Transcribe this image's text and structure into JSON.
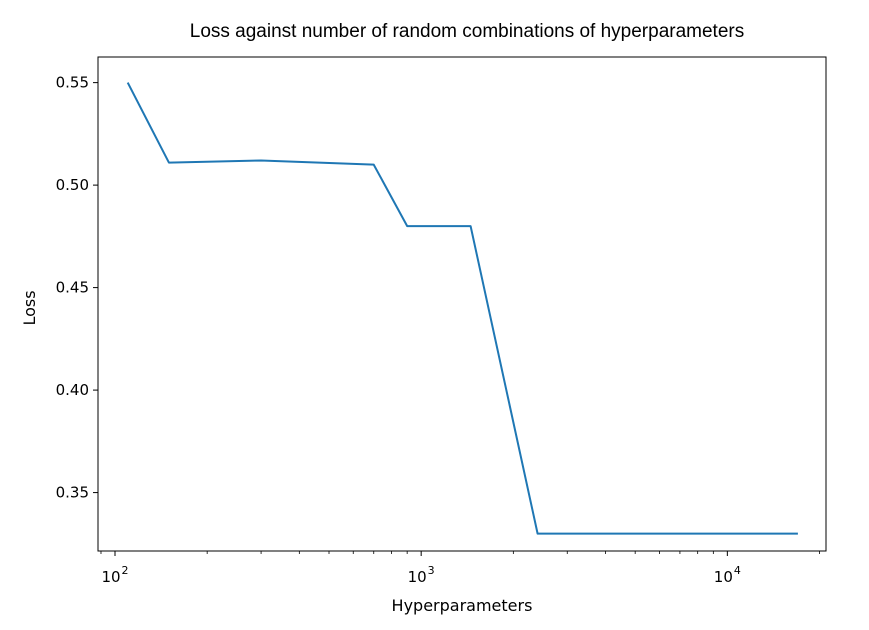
{
  "chart_data": {
    "type": "line",
    "title": "Loss against number of random combinations of hyperparameters",
    "xlabel": "Hyperparameters",
    "ylabel": "Loss",
    "x_scale": "log",
    "xlim": [
      88,
      21000
    ],
    "ylim": [
      0.3215,
      0.5625
    ],
    "grid": false,
    "x_tick_labels": [
      {
        "value": 100,
        "base": "10",
        "exp": "2"
      },
      {
        "value": 1000,
        "base": "10",
        "exp": "3"
      },
      {
        "value": 10000,
        "base": "10",
        "exp": "4"
      }
    ],
    "y_ticks": [
      0.35,
      0.4,
      0.45,
      0.5,
      0.55
    ],
    "y_tick_labels": [
      "0.35",
      "0.40",
      "0.45",
      "0.50",
      "0.55"
    ],
    "series": [
      {
        "color": "#1f77b4",
        "x": [
          110,
          150,
          300,
          700,
          900,
          1450,
          2400,
          17000
        ],
        "y": [
          0.55,
          0.511,
          0.512,
          0.51,
          0.48,
          0.48,
          0.33,
          0.33
        ]
      }
    ]
  }
}
